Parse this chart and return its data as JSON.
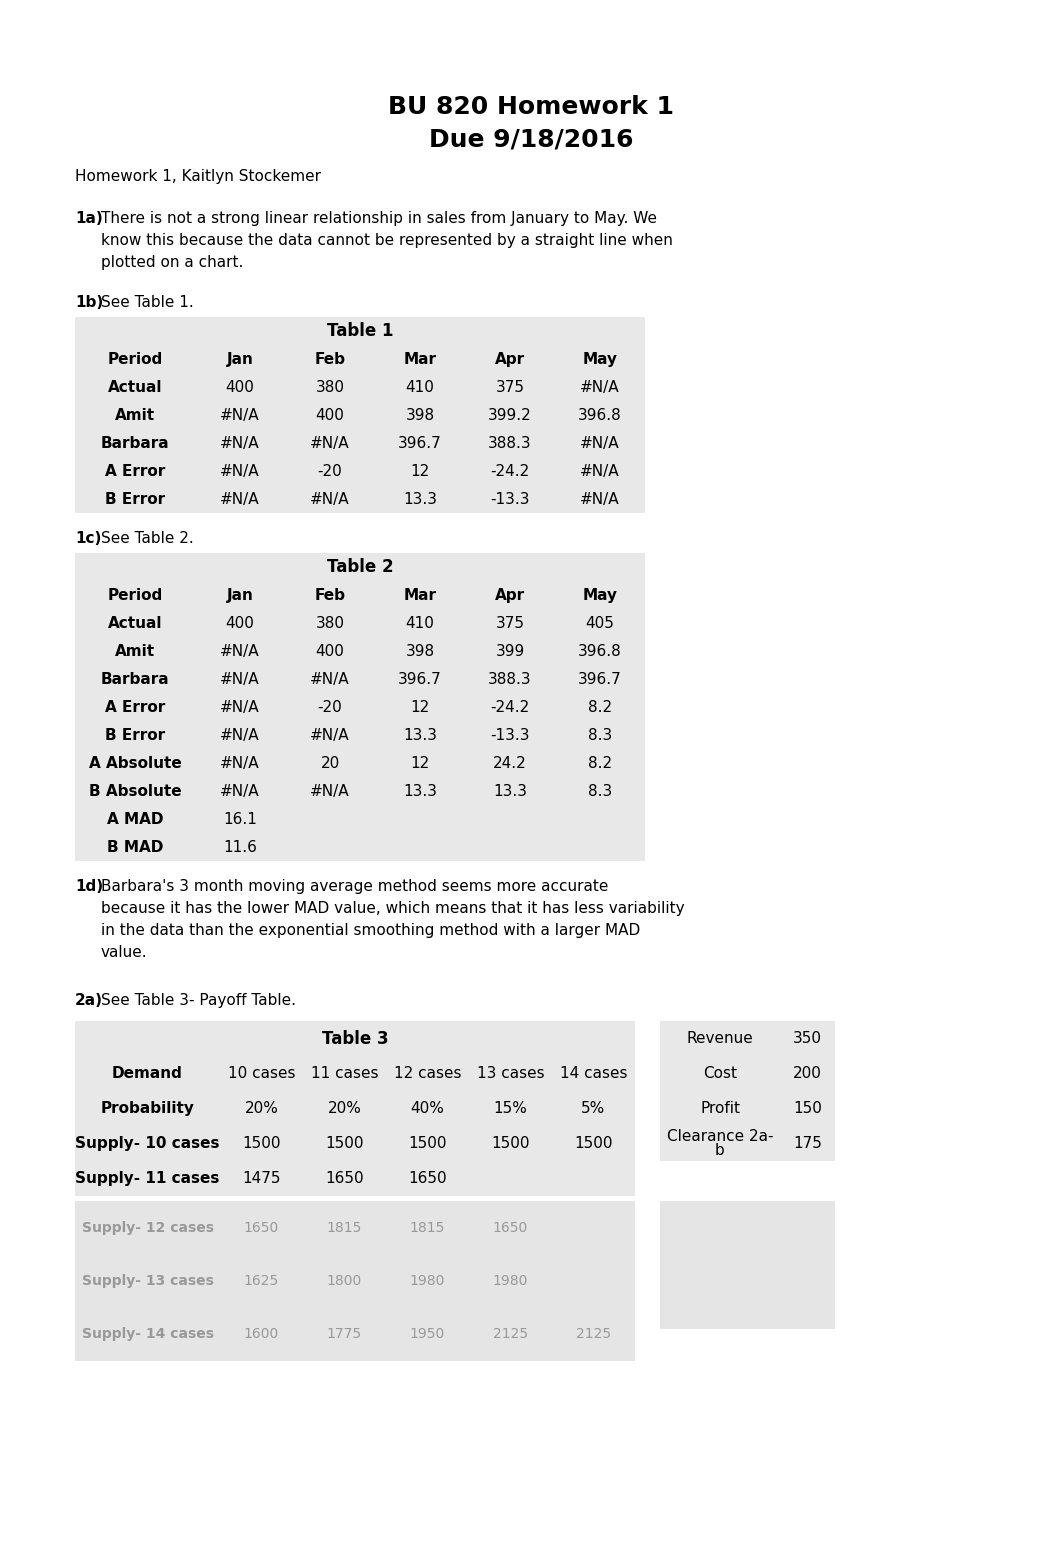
{
  "title_line1": "BU 820 Homework 1",
  "title_line2": "Due 9/18/2016",
  "subtitle": "Homework 1, Kaitlyn Stockemer",
  "q1a_bold": "1a)",
  "q1a_lines": [
    "There is not a strong linear relationship in sales from January to May. We",
    "know this because the data cannot be represented by a straight line when",
    "plotted on a chart."
  ],
  "q1b_bold": "1b)",
  "q1b_text": "See Table 1.",
  "table1_title": "Table 1",
  "table1_headers": [
    "Period",
    "Jan",
    "Feb",
    "Mar",
    "Apr",
    "May"
  ],
  "table1_rows": [
    [
      "Actual",
      "400",
      "380",
      "410",
      "375",
      "#N/A"
    ],
    [
      "Amit",
      "#N/A",
      "400",
      "398",
      "399.2",
      "396.8"
    ],
    [
      "Barbara",
      "#N/A",
      "#N/A",
      "396.7",
      "388.3",
      "#N/A"
    ],
    [
      "A Error",
      "#N/A",
      "-20",
      "12",
      "-24.2",
      "#N/A"
    ],
    [
      "B Error",
      "#N/A",
      "#N/A",
      "13.3",
      "-13.3",
      "#N/A"
    ]
  ],
  "q1c_bold": "1c)",
  "q1c_text": "See Table 2.",
  "table2_title": "Table 2",
  "table2_headers": [
    "Period",
    "Jan",
    "Feb",
    "Mar",
    "Apr",
    "May"
  ],
  "table2_rows": [
    [
      "Actual",
      "400",
      "380",
      "410",
      "375",
      "405"
    ],
    [
      "Amit",
      "#N/A",
      "400",
      "398",
      "399",
      "396.8"
    ],
    [
      "Barbara",
      "#N/A",
      "#N/A",
      "396.7",
      "388.3",
      "396.7"
    ],
    [
      "A Error",
      "#N/A",
      "-20",
      "12",
      "-24.2",
      "8.2"
    ],
    [
      "B Error",
      "#N/A",
      "#N/A",
      "13.3",
      "-13.3",
      "8.3"
    ],
    [
      "A Absolute",
      "#N/A",
      "20",
      "12",
      "24.2",
      "8.2"
    ],
    [
      "B Absolute",
      "#N/A",
      "#N/A",
      "13.3",
      "13.3",
      "8.3"
    ],
    [
      "A MAD",
      "16.1",
      "",
      "",
      "",
      ""
    ],
    [
      "B MAD",
      "11.6",
      "",
      "",
      "",
      ""
    ]
  ],
  "q1d_bold": "1d)",
  "q1d_lines": [
    "Barbara's 3 month moving average method seems more accurate",
    "because it has the lower MAD value, which means that it has less variability",
    "in the data than the exponential smoothing method with a larger MAD",
    "value."
  ],
  "q2a_bold": "2a)",
  "q2a_text": "See Table 3- Payoff Table.",
  "table3_title": "Table 3",
  "table3_demand_label": "Demand",
  "table3_demand_cols": [
    "10 cases",
    "11 cases",
    "12 cases",
    "13 cases",
    "14 cases"
  ],
  "table3_prob_label": "Probability",
  "table3_prob_vals": [
    "20%",
    "20%",
    "40%",
    "15%",
    "5%"
  ],
  "table3_supply_rows": [
    [
      "Supply- 10 cases",
      "1500",
      "1500",
      "1500",
      "1500",
      "1500"
    ],
    [
      "Supply- 11 cases",
      "1475",
      "1650",
      "1650",
      "",
      ""
    ]
  ],
  "side_table_rows": [
    [
      "Revenue",
      "350"
    ],
    [
      "Cost",
      "200"
    ],
    [
      "Profit",
      "150"
    ],
    [
      "Clearance 2a-\nb",
      "175"
    ]
  ],
  "page_bg": "#ffffff",
  "table_bg": "#e8e8e8"
}
